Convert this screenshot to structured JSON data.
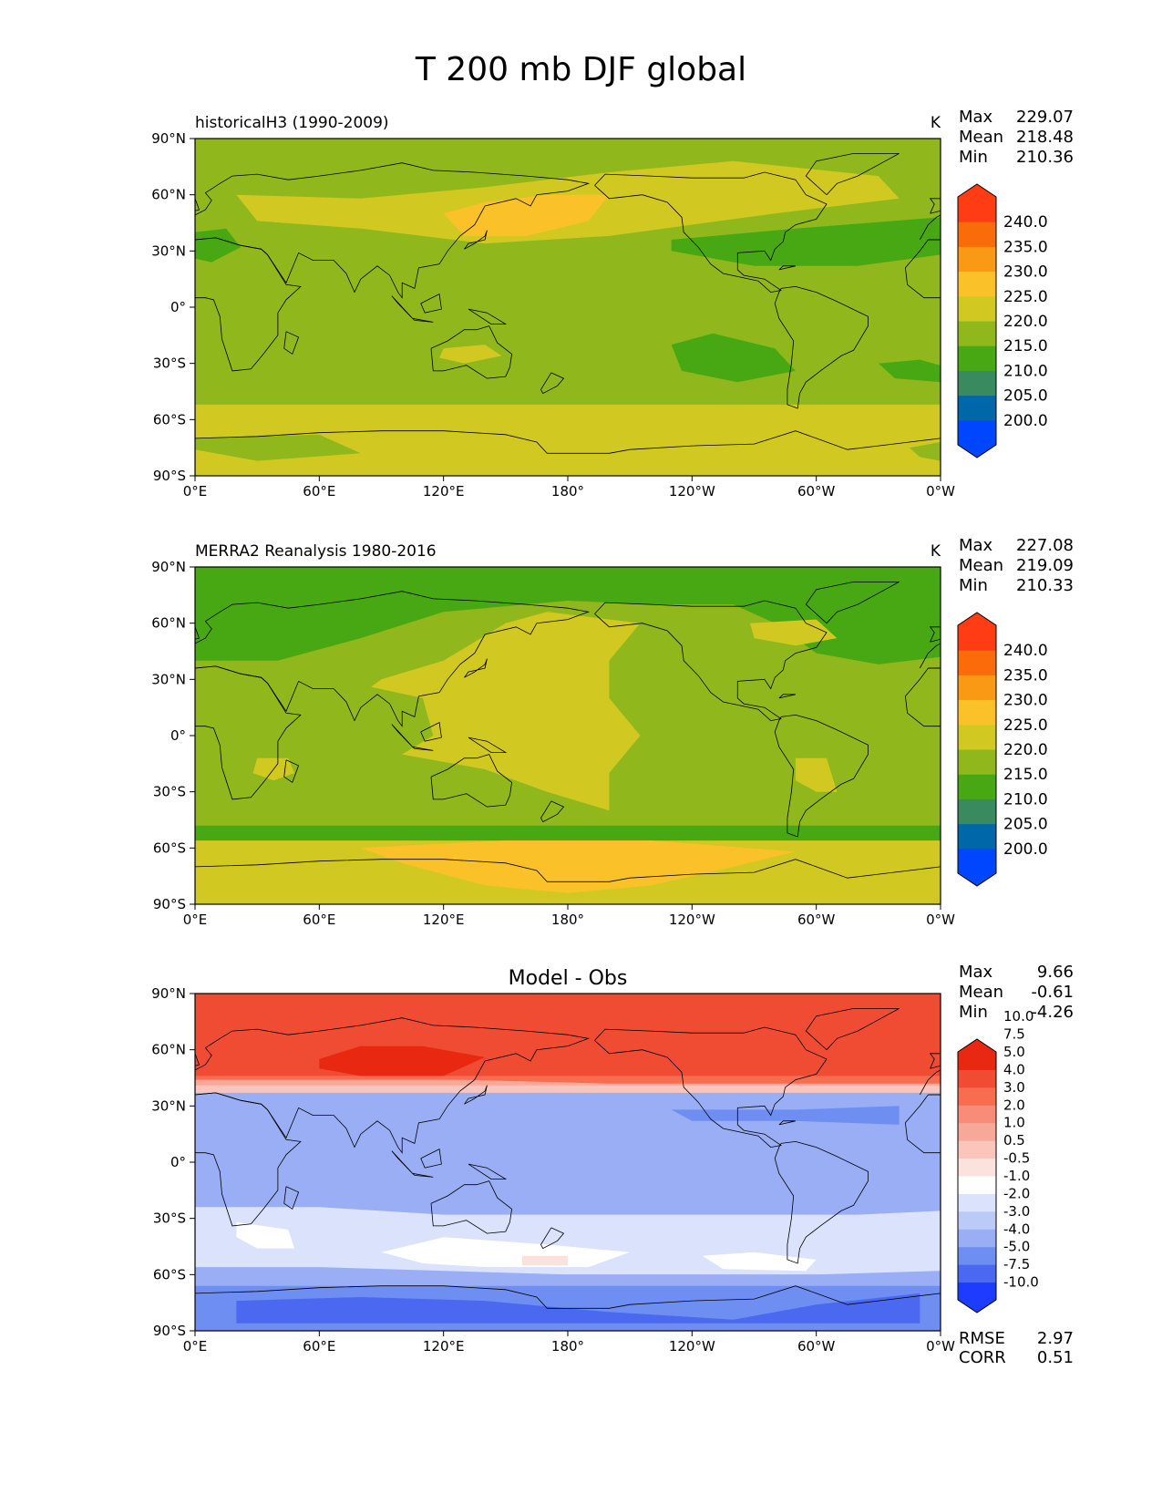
{
  "figure_title": "T 200 mb DJF global",
  "colors": {
    "abs": [
      "#0046ff",
      "#0068a8",
      "#3a8a60",
      "#48a814",
      "#90b81c",
      "#d2c822",
      "#fac228",
      "#fa9a14",
      "#fa6c0a",
      "#ff3c14"
    ],
    "diff": [
      "#1c3cff",
      "#4a68f0",
      "#6e8ef2",
      "#9aaef6",
      "#bccaf8",
      "#dae2fc",
      "#ffffff",
      "#fce2dc",
      "#fac6bc",
      "#f8a898",
      "#f88c78",
      "#f86c50",
      "#f04c34",
      "#e82810"
    ]
  },
  "icons": {
    "colorbar_extend": "triangle-arrow-icon"
  },
  "chart_data": [
    {
      "type": "heatmap",
      "title": "historicalH3 (1990-2009)",
      "units": "K",
      "stats": {
        "max_label": "Max",
        "max": "229.07",
        "mean_label": "Mean",
        "mean": "218.48",
        "min_label": "Min",
        "min": "210.36"
      },
      "x_ticks": [
        "0°E",
        "60°E",
        "120°E",
        "180°",
        "120°W",
        "60°W",
        "0°W"
      ],
      "y_ticks": [
        "90°N",
        "60°N",
        "30°N",
        "0°",
        "30°S",
        "60°S",
        "90°S"
      ],
      "xlim": [
        0,
        360
      ],
      "ylim": [
        -90,
        90
      ],
      "colorbar": {
        "levels": [
          "200.0",
          "205.0",
          "210.0",
          "215.0",
          "220.0",
          "225.0",
          "230.0",
          "235.0",
          "240.0"
        ]
      },
      "background_level": 4,
      "regions": [
        {
          "level": 5,
          "poly": [
            [
              0,
              -52
            ],
            [
              360,
              -52
            ],
            [
              360,
              -90
            ],
            [
              0,
              -90
            ]
          ]
        },
        {
          "level": 4,
          "poly": [
            [
              0,
              -70
            ],
            [
              60,
              -68
            ],
            [
              80,
              -78
            ],
            [
              30,
              -82
            ],
            [
              0,
              -76
            ]
          ]
        },
        {
          "level": 4,
          "poly": [
            [
              345,
              -75
            ],
            [
              360,
              -72
            ],
            [
              360,
              -82
            ],
            [
              350,
              -80
            ]
          ]
        },
        {
          "level": 5,
          "poly": [
            [
              20,
              60
            ],
            [
              80,
              58
            ],
            [
              140,
              64
            ],
            [
              200,
              72
            ],
            [
              260,
              78
            ],
            [
              330,
              70
            ],
            [
              340,
              58
            ],
            [
              280,
              50
            ],
            [
              200,
              38
            ],
            [
              140,
              34
            ],
            [
              80,
              42
            ],
            [
              30,
              46
            ]
          ]
        },
        {
          "level": 6,
          "poly": [
            [
              120,
              50
            ],
            [
              140,
              56
            ],
            [
              170,
              60
            ],
            [
              200,
              60
            ],
            [
              190,
              46
            ],
            [
              160,
              38
            ],
            [
              130,
              38
            ]
          ]
        },
        {
          "level": 3,
          "poly": [
            [
              0,
              40
            ],
            [
              15,
              42
            ],
            [
              22,
              32
            ],
            [
              8,
              24
            ],
            [
              0,
              26
            ]
          ]
        },
        {
          "level": 3,
          "poly": [
            [
              230,
              36
            ],
            [
              290,
              42
            ],
            [
              360,
              48
            ],
            [
              360,
              28
            ],
            [
              320,
              22
            ],
            [
              270,
              22
            ],
            [
              230,
              30
            ]
          ]
        },
        {
          "level": 3,
          "poly": [
            [
              230,
              -20
            ],
            [
              250,
              -14
            ],
            [
              280,
              -22
            ],
            [
              290,
              -34
            ],
            [
              262,
              -40
            ],
            [
              235,
              -34
            ]
          ]
        },
        {
          "level": 3,
          "poly": [
            [
              330,
              -30
            ],
            [
              350,
              -28
            ],
            [
              363,
              -32
            ],
            [
              360,
              -40
            ],
            [
              338,
              -38
            ]
          ]
        },
        {
          "level": 5,
          "poly": [
            [
              120,
              -22
            ],
            [
              140,
              -20
            ],
            [
              148,
              -26
            ],
            [
              130,
              -30
            ],
            [
              118,
              -27
            ]
          ]
        }
      ]
    },
    {
      "type": "heatmap",
      "title": "MERRA2 Reanalysis 1980-2016",
      "units": "K",
      "stats": {
        "max_label": "Max",
        "max": "227.08",
        "mean_label": "Mean",
        "mean": "219.09",
        "min_label": "Min",
        "min": "210.33"
      },
      "x_ticks": [
        "0°E",
        "60°E",
        "120°E",
        "180°",
        "120°W",
        "60°W",
        "0°W"
      ],
      "y_ticks": [
        "90°N",
        "60°N",
        "30°N",
        "0°",
        "30°S",
        "60°S",
        "90°S"
      ],
      "xlim": [
        0,
        360
      ],
      "ylim": [
        -90,
        90
      ],
      "colorbar": {
        "levels": [
          "200.0",
          "205.0",
          "210.0",
          "215.0",
          "220.0",
          "225.0",
          "230.0",
          "235.0",
          "240.0"
        ]
      },
      "background_level": 4,
      "regions": [
        {
          "level": 3,
          "poly": [
            [
              0,
              90
            ],
            [
              360,
              90
            ],
            [
              360,
              42
            ],
            [
              330,
              38
            ],
            [
              300,
              44
            ],
            [
              280,
              60
            ],
            [
              260,
              70
            ],
            [
              220,
              70
            ],
            [
              180,
              72
            ],
            [
              120,
              66
            ],
            [
              80,
              52
            ],
            [
              40,
              40
            ],
            [
              0,
              40
            ]
          ]
        },
        {
          "level": 3,
          "poly": [
            [
              0,
              -48
            ],
            [
              360,
              -48
            ],
            [
              360,
              -90
            ],
            [
              0,
              -90
            ]
          ]
        },
        {
          "level": 5,
          "poly": [
            [
              0,
              -56
            ],
            [
              360,
              -56
            ],
            [
              360,
              -90
            ],
            [
              0,
              -90
            ]
          ]
        },
        {
          "level": 6,
          "poly": [
            [
              80,
              -60
            ],
            [
              150,
              -56
            ],
            [
              220,
              -56
            ],
            [
              290,
              -62
            ],
            [
              260,
              -70
            ],
            [
              220,
              -80
            ],
            [
              180,
              -84
            ],
            [
              140,
              -80
            ],
            [
              100,
              -68
            ]
          ]
        },
        {
          "level": 5,
          "poly": [
            [
              90,
              30
            ],
            [
              120,
              40
            ],
            [
              150,
              60
            ],
            [
              170,
              66
            ],
            [
              215,
              60
            ],
            [
              200,
              40
            ],
            [
              200,
              20
            ],
            [
              215,
              0
            ],
            [
              200,
              -20
            ],
            [
              200,
              -40
            ],
            [
              170,
              -30
            ],
            [
              140,
              -18
            ],
            [
              100,
              -10
            ],
            [
              85,
              -20
            ],
            [
              115,
              0
            ],
            [
              110,
              20
            ],
            [
              85,
              26
            ]
          ]
        },
        {
          "level": 5,
          "poly": [
            [
              30,
              -12
            ],
            [
              45,
              -12
            ],
            [
              48,
              -20
            ],
            [
              38,
              -24
            ],
            [
              28,
              -20
            ]
          ]
        },
        {
          "level": 5,
          "poly": [
            [
              290,
              -12
            ],
            [
              305,
              -12
            ],
            [
              310,
              -30
            ],
            [
              300,
              -30
            ],
            [
              290,
              -24
            ]
          ]
        },
        {
          "level": 5,
          "poly": [
            [
              268,
              60
            ],
            [
              300,
              62
            ],
            [
              310,
              52
            ],
            [
              290,
              48
            ],
            [
              270,
              52
            ]
          ]
        }
      ]
    },
    {
      "type": "heatmap",
      "title": "Model - Obs",
      "units": "",
      "stats": {
        "max_label": "Max",
        "max": "9.66",
        "mean_label": "Mean",
        "mean": "-0.61",
        "min_label": "Min",
        "min": "-4.26"
      },
      "extra_stats": [
        {
          "label": "RMSE",
          "value": "2.97"
        },
        {
          "label": "CORR",
          "value": "0.51"
        }
      ],
      "x_ticks": [
        "0°E",
        "60°E",
        "120°E",
        "180°",
        "120°W",
        "60°W",
        "0°W"
      ],
      "y_ticks": [
        "90°N",
        "60°N",
        "30°N",
        "0°",
        "30°S",
        "60°S",
        "90°S"
      ],
      "xlim": [
        0,
        360
      ],
      "ylim": [
        -90,
        90
      ],
      "colorbar": {
        "levels": [
          "-10.0",
          "-7.5",
          "-5.0",
          "-4.0",
          "-3.0",
          "-2.0",
          "-1.0",
          "-0.5",
          "0.5",
          "1.0",
          "2.0",
          "3.0",
          "4.0",
          "5.0",
          "7.5",
          "10.0"
        ]
      },
      "background_level": 3,
      "regions": [
        {
          "level": 12,
          "poly": [
            [
              0,
              90
            ],
            [
              360,
              90
            ],
            [
              360,
              44
            ],
            [
              0,
              44
            ]
          ]
        },
        {
          "level": 11,
          "poly": [
            [
              0,
              46
            ],
            [
              360,
              46
            ],
            [
              360,
              40
            ],
            [
              0,
              40
            ]
          ]
        },
        {
          "level": 9,
          "poly": [
            [
              0,
              44
            ],
            [
              130,
              44
            ],
            [
              200,
              42
            ],
            [
              360,
              42
            ],
            [
              360,
              38
            ],
            [
              0,
              38
            ]
          ]
        },
        {
          "level": 8,
          "poly": [
            [
              0,
              41
            ],
            [
              360,
              41
            ],
            [
              360,
              37
            ],
            [
              0,
              37
            ]
          ]
        },
        {
          "level": 13,
          "poly": [
            [
              60,
              55
            ],
            [
              80,
              62
            ],
            [
              110,
              62
            ],
            [
              140,
              56
            ],
            [
              120,
              46
            ],
            [
              80,
              46
            ],
            [
              60,
              50
            ]
          ]
        },
        {
          "level": 2,
          "poly": [
            [
              230,
              28
            ],
            [
              290,
              28
            ],
            [
              340,
              30
            ],
            [
              340,
              20
            ],
            [
              290,
              22
            ],
            [
              240,
              22
            ]
          ]
        },
        {
          "level": 5,
          "poly": [
            [
              0,
              -24
            ],
            [
              60,
              -24
            ],
            [
              120,
              -28
            ],
            [
              180,
              -28
            ],
            [
              260,
              -28
            ],
            [
              320,
              -28
            ],
            [
              360,
              -26
            ],
            [
              360,
              -58
            ],
            [
              300,
              -60
            ],
            [
              180,
              -60
            ],
            [
              60,
              -56
            ],
            [
              0,
              -56
            ]
          ]
        },
        {
          "level": 6,
          "poly": [
            [
              20,
              -32
            ],
            [
              45,
              -36
            ],
            [
              48,
              -46
            ],
            [
              30,
              -46
            ],
            [
              20,
              -40
            ]
          ]
        },
        {
          "level": 6,
          "poly": [
            [
              120,
              -40
            ],
            [
              170,
              -44
            ],
            [
              210,
              -48
            ],
            [
              190,
              -56
            ],
            [
              140,
              -56
            ],
            [
              110,
              -54
            ],
            [
              90,
              -48
            ]
          ]
        },
        {
          "level": 7,
          "poly": [
            [
              158,
              -50
            ],
            [
              180,
              -50
            ],
            [
              180,
              -55
            ],
            [
              158,
              -55
            ]
          ]
        },
        {
          "level": 6,
          "poly": [
            [
              245,
              -50
            ],
            [
              270,
              -48
            ],
            [
              300,
              -52
            ],
            [
              295,
              -58
            ],
            [
              255,
              -57
            ]
          ]
        },
        {
          "level": 3,
          "poly": [
            [
              0,
              -60
            ],
            [
              360,
              -60
            ],
            [
              360,
              -66
            ],
            [
              0,
              -66
            ]
          ]
        },
        {
          "level": 2,
          "poly": [
            [
              0,
              -66
            ],
            [
              360,
              -66
            ],
            [
              360,
              -90
            ],
            [
              0,
              -90
            ]
          ]
        },
        {
          "level": 1,
          "poly": [
            [
              20,
              -74
            ],
            [
              80,
              -72
            ],
            [
              140,
              -74
            ],
            [
              200,
              -80
            ],
            [
              260,
              -84
            ],
            [
              300,
              -76
            ],
            [
              350,
              -70
            ],
            [
              350,
              -86
            ],
            [
              20,
              -86
            ]
          ]
        }
      ]
    }
  ]
}
